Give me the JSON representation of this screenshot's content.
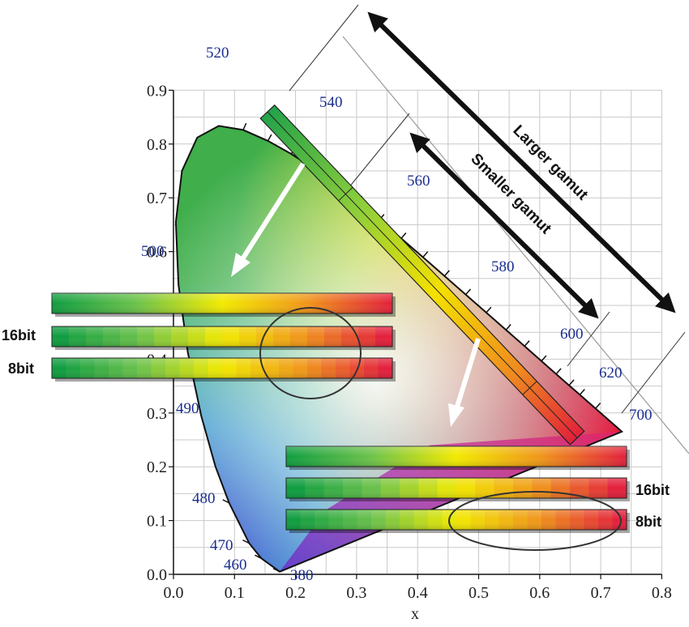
{
  "axes": {
    "x_name": "x",
    "x_ticks": [
      "0.0",
      "0.1",
      "0.2",
      "0.3",
      "0.4",
      "0.5",
      "0.6",
      "0.7",
      "0.8"
    ],
    "y_ticks": [
      "0.0",
      "0.1",
      "0.2",
      "0.3",
      "0.4",
      "0.5",
      "0.6",
      "0.7",
      "0.8",
      "0.9"
    ]
  },
  "wavelengths": {
    "w380": "380",
    "w460": "460",
    "w470": "470",
    "w480": "480",
    "w490": "490",
    "w500": "500",
    "w520": "520",
    "w540": "540",
    "w560": "560",
    "w580": "580",
    "w600": "600",
    "w620": "620",
    "w700": "700"
  },
  "annotations": {
    "larger_gamut": "Larger gamut",
    "smaller_gamut": "Smaller gamut"
  },
  "upper_bars": {
    "label_16bit": "16bit",
    "label_8bit": "8bit",
    "steps_16bit": 20,
    "steps_8bit": 24
  },
  "lower_bars": {
    "label_16bit": "16bit",
    "label_8bit": "8bit",
    "steps_16bit": 18,
    "steps_8bit": 24
  },
  "colors": {
    "green": "#12a03c",
    "yellow": "#f2ea00",
    "orange": "#f0951a",
    "red": "#e3203c",
    "label_blue": "#1a2d8f"
  }
}
